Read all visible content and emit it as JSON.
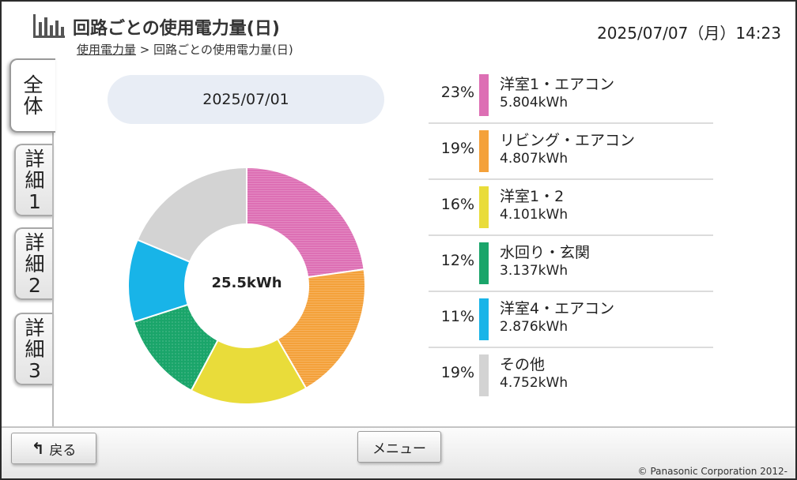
{
  "header": {
    "title": "回路ごとの使用電力量(日)",
    "datetime": "2025/07/07（月）14:23",
    "breadcrumb": {
      "link": "使用電力量",
      "separator": ">",
      "current": "回路ごとの使用電力量(日)"
    }
  },
  "tabs": [
    {
      "label": "全体",
      "active": true
    },
    {
      "label": "詳細1",
      "active": false
    },
    {
      "label": "詳細2",
      "active": false
    },
    {
      "label": "詳細3",
      "active": false
    }
  ],
  "date_display": "2025/07/01",
  "total": "25.5kWh",
  "chart_data": {
    "type": "pie",
    "categories": [
      "洋室1・エアコン",
      "リビング・エアコン",
      "洋室1・2",
      "水回り・玄関",
      "洋室4・エアコン",
      "その他"
    ],
    "values": [
      5.804,
      4.807,
      4.101,
      3.137,
      2.876,
      4.752
    ],
    "percentages": [
      23,
      19,
      16,
      12,
      11,
      19
    ],
    "unit": "kWh",
    "center_label": "25.5kWh",
    "colors": [
      "#dd6fb4",
      "#f4a13a",
      "#e9dc3a",
      "#1aa56a",
      "#18b4e8",
      "#d3d3d3"
    ]
  },
  "legend": [
    {
      "pct": "23%",
      "name": "洋室1・エアコン",
      "value": "5.804kWh",
      "color": "#dd6fb4"
    },
    {
      "pct": "19%",
      "name": "リビング・エアコン",
      "value": "4.807kWh",
      "color": "#f4a13a"
    },
    {
      "pct": "16%",
      "name": "洋室1・2",
      "value": "4.101kWh",
      "color": "#e9dc3a"
    },
    {
      "pct": "12%",
      "name": "水回り・玄関",
      "value": "3.137kWh",
      "color": "#1aa56a"
    },
    {
      "pct": "11%",
      "name": "洋室4・エアコン",
      "value": "2.876kWh",
      "color": "#18b4e8"
    },
    {
      "pct": "19%",
      "name": "その他",
      "value": "4.752kWh",
      "color": "#d3d3d3"
    }
  ],
  "footer": {
    "back_label": "戻る",
    "back_icon": "return-arrow-icon",
    "menu_label": "メニュー",
    "copyright": "© Panasonic Corporation 2012-"
  }
}
